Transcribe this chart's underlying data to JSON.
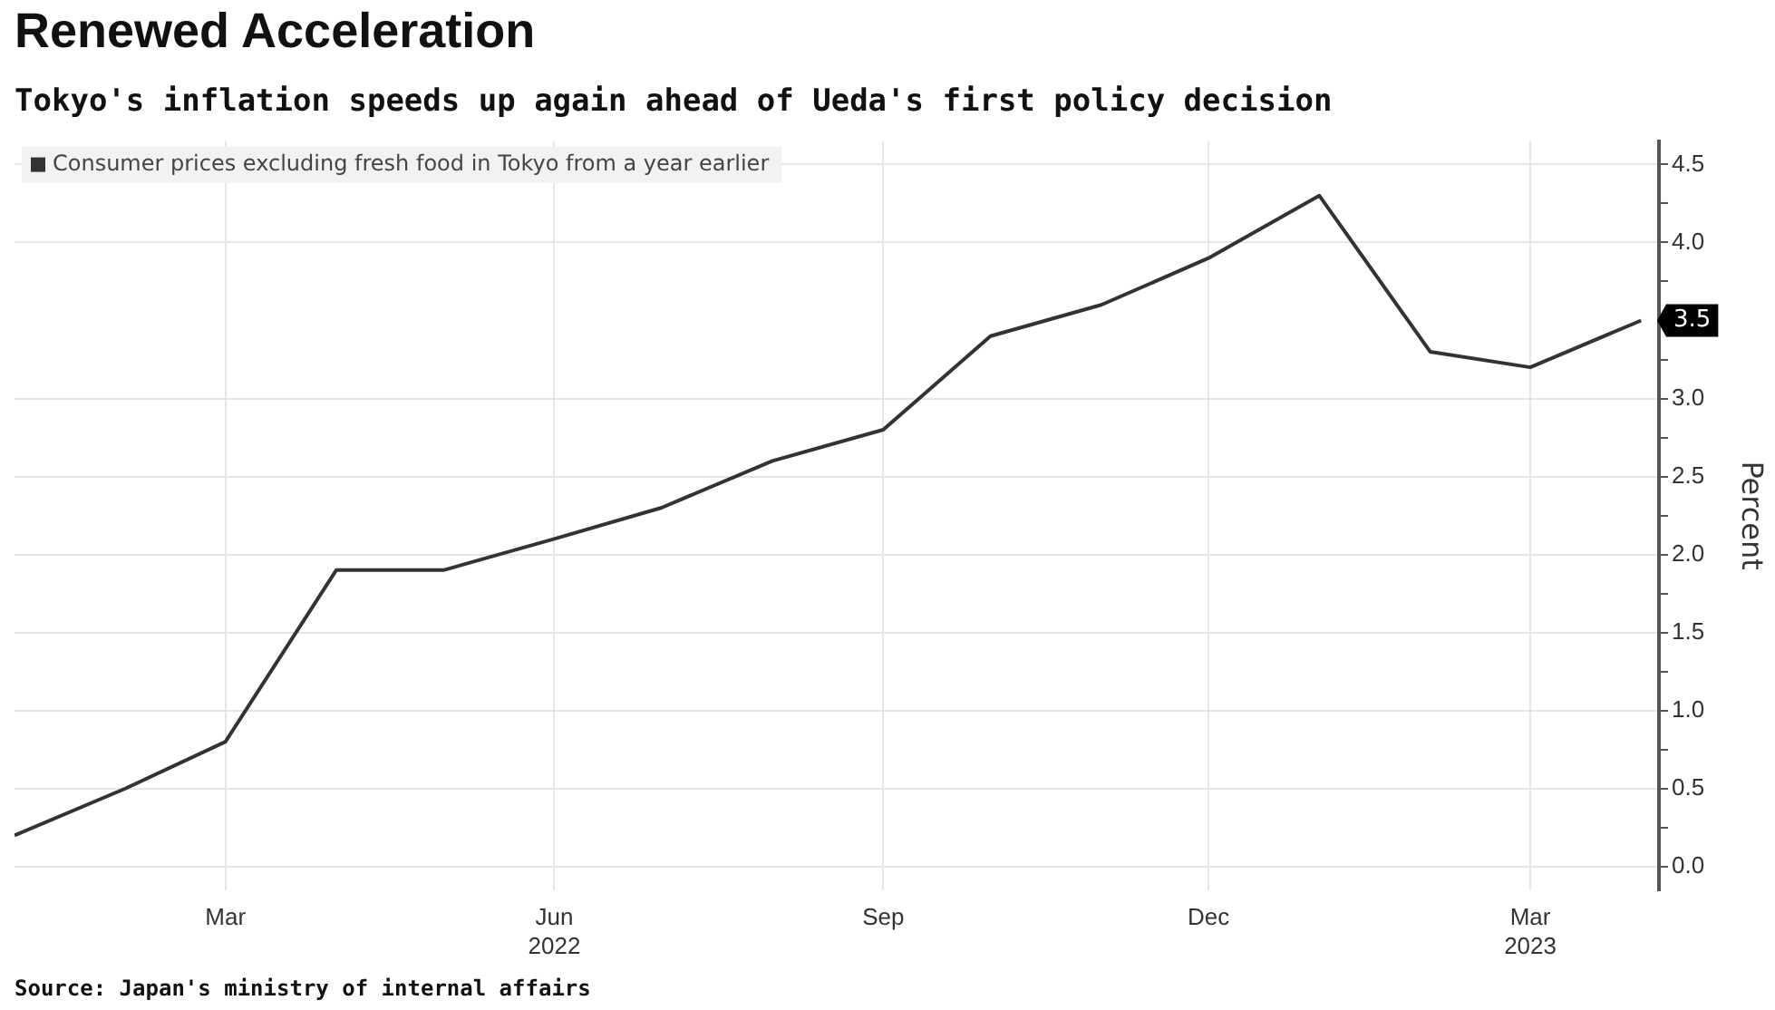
{
  "chart_data": {
    "type": "line",
    "title": "Renewed Acceleration",
    "subtitle": "Tokyo's inflation speeds up again ahead of Ueda's first policy decision",
    "ylabel": "Percent",
    "x": [
      "2022-01",
      "2022-02",
      "2022-03",
      "2022-04",
      "2022-05",
      "2022-06",
      "2022-07",
      "2022-08",
      "2022-09",
      "2022-10",
      "2022-11",
      "2022-12",
      "2023-01",
      "2023-02",
      "2023-03",
      "2023-04"
    ],
    "series": [
      {
        "name": "Consumer prices excluding fresh food in Tokyo from a year earlier",
        "color": "#333333",
        "values": [
          0.2,
          0.5,
          0.8,
          1.9,
          1.9,
          2.1,
          2.3,
          2.6,
          2.8,
          3.4,
          3.6,
          3.9,
          4.3,
          3.3,
          3.2,
          3.5
        ],
        "value_labels": [
          null,
          null,
          null,
          null,
          null,
          null,
          null,
          null,
          null,
          null,
          null,
          null,
          null,
          null,
          null,
          "3.5"
        ]
      }
    ],
    "xlim": [
      "2022-01",
      "2023-04-06"
    ],
    "xticks": [
      {
        "value": "2022-03",
        "label": "Mar"
      },
      {
        "value": "2022-06",
        "label": "Jun\n2022"
      },
      {
        "value": "2022-09",
        "label": "Sep"
      },
      {
        "value": "2022-12",
        "label": "Dec"
      },
      {
        "value": "2023-03",
        "label": "Mar\n2023"
      }
    ],
    "ylim": [
      -0.15,
      4.65
    ],
    "yticks": [
      {
        "value": 0,
        "label": "0.0"
      },
      {
        "value": 0.25,
        "label": null
      },
      {
        "value": 0.5,
        "label": "0.5"
      },
      {
        "value": 0.75,
        "label": null
      },
      {
        "value": 1,
        "label": "1.0"
      },
      {
        "value": 1.25,
        "label": null
      },
      {
        "value": 1.5,
        "label": "1.5"
      },
      {
        "value": 1.75,
        "label": null
      },
      {
        "value": 2,
        "label": "2.0"
      },
      {
        "value": 2.25,
        "label": null
      },
      {
        "value": 2.5,
        "label": "2.5"
      },
      {
        "value": 2.75,
        "label": null
      },
      {
        "value": 3,
        "label": "3.0"
      },
      {
        "value": 3.25,
        "label": null
      },
      {
        "value": 3.5,
        "label": null
      },
      {
        "value": 3.75,
        "label": null
      },
      {
        "value": 4,
        "label": "4.0"
      },
      {
        "value": 4.25,
        "label": null
      },
      {
        "value": 4.5,
        "label": "4.5"
      }
    ],
    "grid": true,
    "legend": "top left",
    "marker": "none",
    "line_style": "solid",
    "annotations": [
      "Source: Japan's ministry of internal affairs"
    ]
  }
}
